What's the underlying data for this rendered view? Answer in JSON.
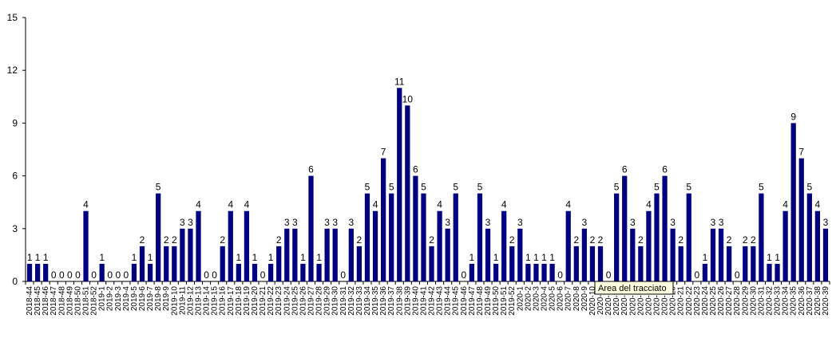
{
  "chart_data": {
    "type": "bar",
    "title": "",
    "xlabel": "",
    "ylabel": "",
    "ylim": [
      0,
      15
    ],
    "yticks": [
      0,
      3,
      6,
      9,
      12,
      15
    ],
    "grid": false,
    "bar_color": "#000080",
    "categories": [
      "2018-44",
      "2018-45",
      "2018-46",
      "2018-47",
      "2018-48",
      "2018-49",
      "2018-50",
      "2018-51",
      "2018-52",
      "2019-1",
      "2019-2",
      "2019-3",
      "2019-4",
      "2019-5",
      "2019-6",
      "2019-7",
      "2019-8",
      "2019-9",
      "2019-10",
      "2019-11",
      "2019-12",
      "2019-13",
      "2019-14",
      "2019-15",
      "2019-16",
      "2019-17",
      "2019-18",
      "2019-19",
      "2019-20",
      "2019-21",
      "2019-22",
      "2019-23",
      "2019-24",
      "2019-25",
      "2019-26",
      "2019-27",
      "2019-28",
      "2019-29",
      "2019-30",
      "2019-31",
      "2019-32",
      "2019-33",
      "2019-34",
      "2019-35",
      "2019-36",
      "2019-37",
      "2019-38",
      "2019-39",
      "2019-40",
      "2019-41",
      "2019-42",
      "2019-43",
      "2019-44",
      "2019-45",
      "2019-46",
      "2019-47",
      "2019-48",
      "2019-49",
      "2019-50",
      "2019-51",
      "2019-52",
      "2020-1",
      "2020-2",
      "2020-3",
      "2020-4",
      "2020-5",
      "2020-6",
      "2020-7",
      "2020-8",
      "2020-9",
      "2020-10",
      "2020-11",
      "2020-12",
      "2020-13",
      "2020-14",
      "2020-15",
      "2020-16",
      "2020-17",
      "2020-18",
      "2020-19",
      "2020-20",
      "2020-21",
      "2020-22",
      "2020-23",
      "2020-24",
      "2020-25",
      "2020-26",
      "2020-27",
      "2020-28",
      "2020-29",
      "2020-30",
      "2020-31",
      "2020-32",
      "2020-33",
      "2020-34",
      "2020-35",
      "2020-36",
      "2020-37",
      "2020-38",
      "2020-39"
    ],
    "values": [
      1,
      1,
      1,
      0,
      0,
      0,
      0,
      4,
      0,
      1,
      0,
      0,
      0,
      1,
      2,
      1,
      5,
      2,
      2,
      3,
      3,
      4,
      0,
      0,
      2,
      4,
      1,
      4,
      1,
      0,
      1,
      2,
      3,
      3,
      1,
      6,
      1,
      3,
      3,
      0,
      3,
      2,
      5,
      4,
      7,
      5,
      11,
      10,
      6,
      5,
      2,
      4,
      3,
      5,
      0,
      1,
      5,
      3,
      1,
      4,
      2,
      3,
      1,
      1,
      1,
      1,
      0,
      4,
      2,
      3,
      2,
      2,
      0,
      5,
      6,
      3,
      2,
      4,
      5,
      6,
      3,
      2,
      5,
      0,
      1,
      3,
      3,
      2,
      0,
      2,
      2,
      5,
      1,
      1,
      4,
      9,
      7,
      5,
      4,
      3
    ]
  },
  "tooltip": {
    "text": "Area del tracciato"
  }
}
